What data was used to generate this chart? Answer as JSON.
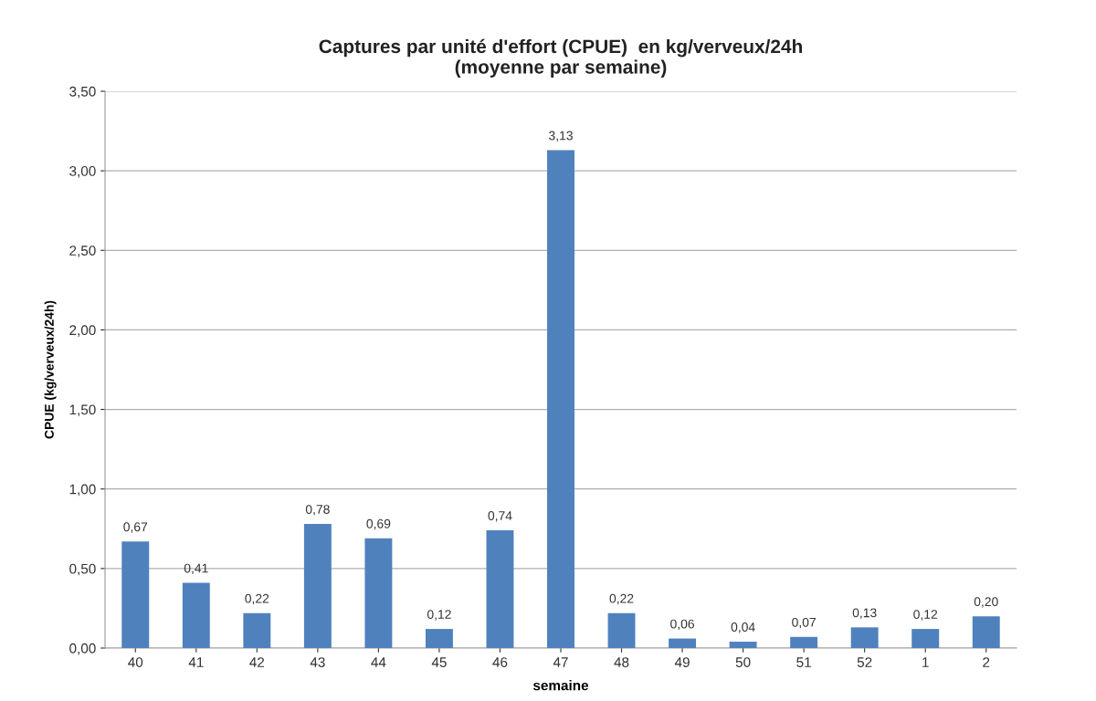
{
  "chart_data": {
    "type": "bar",
    "title": "Captures par unité d'effort (CPUE)  en kg/verveux/24h\n(moyenne par semaine)",
    "xlabel": "semaine",
    "ylabel": "CPUE (kg/verveux/24h)",
    "categories": [
      "40",
      "41",
      "42",
      "43",
      "44",
      "45",
      "46",
      "47",
      "48",
      "49",
      "50",
      "51",
      "52",
      "1",
      "2"
    ],
    "values": [
      0.67,
      0.41,
      0.22,
      0.78,
      0.69,
      0.12,
      0.74,
      3.13,
      0.22,
      0.06,
      0.04,
      0.07,
      0.13,
      0.12,
      0.2
    ],
    "value_labels": [
      "0,67",
      "0,41",
      "0,22",
      "0,78",
      "0,69",
      "0,12",
      "0,74",
      "3,13",
      "0,22",
      "0,06",
      "0,04",
      "0,07",
      "0,13",
      "0,12",
      "0,20"
    ],
    "color": "#4f81bd",
    "ylim": [
      0,
      3.5
    ],
    "yticks": [
      {
        "value": 0,
        "label": "0,00"
      },
      {
        "value": 0.5,
        "label": "0,50"
      },
      {
        "value": 1,
        "label": "1,00"
      },
      {
        "value": 1.5,
        "label": "1,50"
      },
      {
        "value": 2,
        "label": "2,00"
      },
      {
        "value": 2.5,
        "label": "2,50"
      },
      {
        "value": 3,
        "label": "3,00"
      },
      {
        "value": 3.5,
        "label": "3,50"
      }
    ],
    "grid": "y",
    "legend": false
  }
}
